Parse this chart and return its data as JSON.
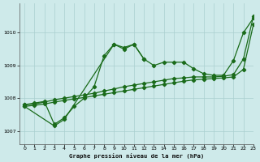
{
  "title": "Graphe pression niveau de la mer (hPa)",
  "bg_color": "#ceeaea",
  "grid_color": "#aacfcf",
  "line_color": "#1a6b1a",
  "xlim": [
    -0.5,
    23
  ],
  "ylim": [
    1006.6,
    1010.9
  ],
  "yticks": [
    1007,
    1008,
    1009,
    1010
  ],
  "xticks": [
    0,
    1,
    2,
    3,
    4,
    5,
    6,
    7,
    8,
    9,
    10,
    11,
    12,
    13,
    14,
    15,
    16,
    17,
    18,
    19,
    20,
    21,
    22,
    23
  ],
  "series1": [
    1007.8,
    1007.85,
    1007.9,
    1007.2,
    1007.4,
    1007.75,
    1008.0,
    1008.35,
    1009.3,
    1009.65,
    1009.55,
    1009.65,
    1009.2,
    1009.0,
    1009.1,
    1009.1,
    1009.1,
    1008.9,
    1008.75,
    1008.7,
    1008.7,
    1009.15,
    1010.0,
    1010.45
  ],
  "series2_x": [
    0,
    3,
    4,
    9,
    10,
    11,
    12
  ],
  "series2_y": [
    1007.75,
    1007.15,
    1007.35,
    1009.65,
    1009.5,
    1009.65,
    1009.2
  ],
  "series3": [
    1007.8,
    1007.82,
    1007.88,
    1007.95,
    1008.0,
    1008.05,
    1008.1,
    1008.15,
    1008.22,
    1008.28,
    1008.35,
    1008.4,
    1008.45,
    1008.5,
    1008.55,
    1008.6,
    1008.62,
    1008.65,
    1008.65,
    1008.65,
    1008.67,
    1008.72,
    1009.2,
    1010.5
  ],
  "series4": [
    1007.75,
    1007.78,
    1007.82,
    1007.88,
    1007.93,
    1007.98,
    1008.02,
    1008.07,
    1008.12,
    1008.17,
    1008.22,
    1008.27,
    1008.32,
    1008.37,
    1008.42,
    1008.47,
    1008.52,
    1008.56,
    1008.58,
    1008.6,
    1008.62,
    1008.65,
    1008.88,
    1010.25
  ]
}
